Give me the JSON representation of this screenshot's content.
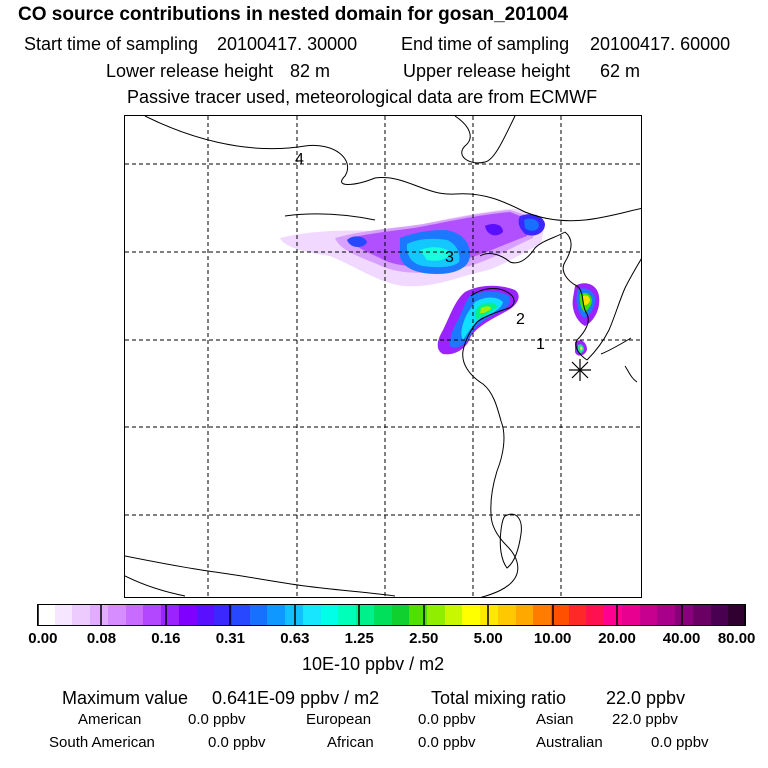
{
  "header": {
    "title": "CO  source contributions in nested domain for gosan_201004",
    "start_label": "Start time of sampling",
    "start_value": "20100417. 30000",
    "end_label": "End time of sampling",
    "end_value": "20100417. 60000",
    "lower_label": "Lower release height",
    "lower_value": "82 m",
    "upper_label": "Upper release height",
    "upper_value": "62 m",
    "note": "Passive tracer used, meteorological data are from ECMWF"
  },
  "map": {
    "trajectory_labels": [
      "4",
      "3",
      "2",
      "1"
    ]
  },
  "colorbar": {
    "ticks": [
      "0.00",
      "0.08",
      "0.16",
      "0.31",
      "0.63",
      "1.25",
      "2.50",
      "5.00",
      "10.00",
      "20.00",
      "40.00",
      "80.00"
    ],
    "unit": "10E-10 ppbv / m2",
    "colors": [
      "#ffffff",
      "#f7e6ff",
      "#eecbff",
      "#e2adff",
      "#d68dff",
      "#c86bff",
      "#b347ff",
      "#9a23ff",
      "#8000ff",
      "#5a10ff",
      "#3a28ff",
      "#2848ff",
      "#1870ff",
      "#0f98ff",
      "#10c0ff",
      "#18e6ff",
      "#00ffe6",
      "#00ffb8",
      "#00f08c",
      "#00e05a",
      "#10d030",
      "#50e000",
      "#90ef00",
      "#c8f800",
      "#ffff00",
      "#ffe800",
      "#ffc800",
      "#ffa800",
      "#ff7c00",
      "#ff5000",
      "#ff2828",
      "#ff1050",
      "#ff0090",
      "#e80090",
      "#c80090",
      "#a8008a",
      "#88007a",
      "#6a0064",
      "#4a0050",
      "#300030"
    ]
  },
  "summary": {
    "max_label": "Maximum value",
    "max_value": "0.641E-09 ppbv / m2",
    "total_label": "Total mixing ratio",
    "total_value": "22.0 ppbv",
    "regions": [
      {
        "name": "American",
        "value": "0.0 ppbv"
      },
      {
        "name": "European",
        "value": "0.0 ppbv"
      },
      {
        "name": "Asian",
        "value": "22.0 ppbv"
      },
      {
        "name": "South American",
        "value": "0.0 ppbv"
      },
      {
        "name": "African",
        "value": "0.0 ppbv"
      },
      {
        "name": "Australian",
        "value": "0.0 ppbv"
      }
    ]
  }
}
